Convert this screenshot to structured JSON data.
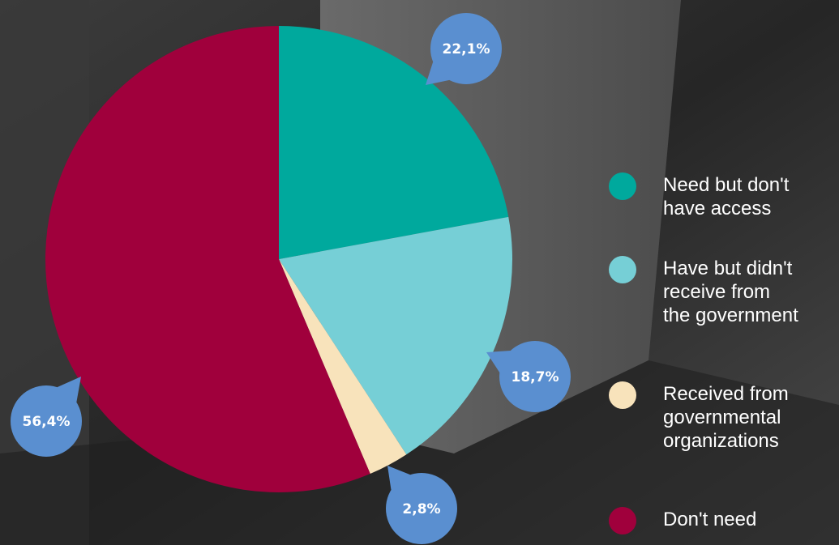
{
  "chart_data": {
    "type": "pie",
    "categories": [
      "Need but don't\nhave access",
      "Have but didn't\nreceive from\nthe government",
      "Received from\ngovernmental\norganizations",
      "Don't need"
    ],
    "values": [
      22.1,
      18.7,
      2.8,
      56.4
    ],
    "value_labels": [
      "22,1%",
      "18,7%",
      "2,8%",
      "56,4%"
    ],
    "colors": [
      "#00a99d",
      "#76cfd6",
      "#f8e3bb",
      "#a0003c"
    ]
  }
}
